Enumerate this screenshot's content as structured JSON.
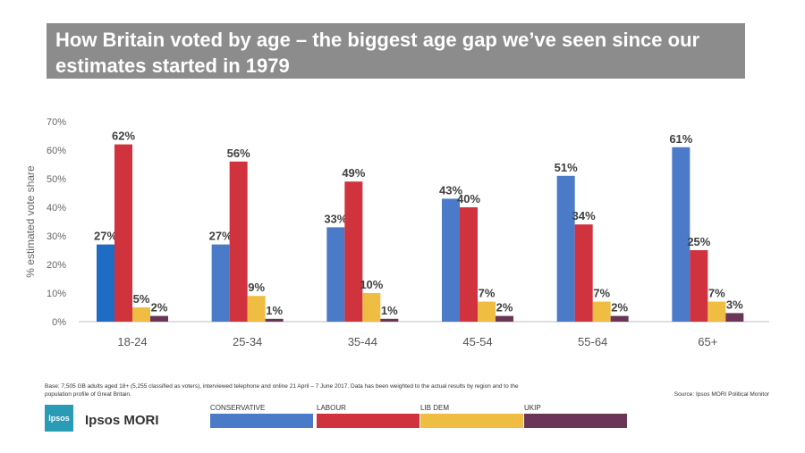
{
  "header": {
    "title": "How Britain voted by age – the biggest age gap we’ve seen since our estimates started in 1979"
  },
  "chart_data": {
    "type": "bar",
    "categories": [
      "18-24",
      "25-34",
      "35-44",
      "45-54",
      "55-64",
      "65+"
    ],
    "series": [
      {
        "name": "CONSERVATIVE",
        "color": "#4a7ac8",
        "values": [
          27,
          27,
          33,
          43,
          51,
          61
        ]
      },
      {
        "name": "LABOUR",
        "color": "#d0323e",
        "values": [
          62,
          56,
          49,
          40,
          34,
          25
        ]
      },
      {
        "name": "LIB DEM",
        "color": "#f0bd43",
        "values": [
          5,
          9,
          10,
          7,
          7,
          7
        ]
      },
      {
        "name": "UKIP",
        "color": "#6b3558",
        "values": [
          2,
          1,
          1,
          2,
          2,
          3
        ]
      }
    ],
    "highlight_color": "#1f6cc4",
    "ylabel": "% estimated vote share",
    "ylim": [
      0,
      70
    ],
    "yticks": [
      0,
      10,
      20,
      30,
      40,
      50,
      60,
      70
    ],
    "ytick_suffix": "%",
    "grid": false,
    "legend": "bottom"
  },
  "footer": {
    "note": "Base: 7,505 GB adults aged 18+ (5,255 classified as voters), interviewed telephone and online 21 April – 7 June 2017. Data has been weighted to the actual results by region and to the population profile of Great Britain.",
    "source": "Source: Ipsos MORI Political Monitor",
    "logo_text": "Ipsos",
    "brand": "Ipsos MORI"
  }
}
